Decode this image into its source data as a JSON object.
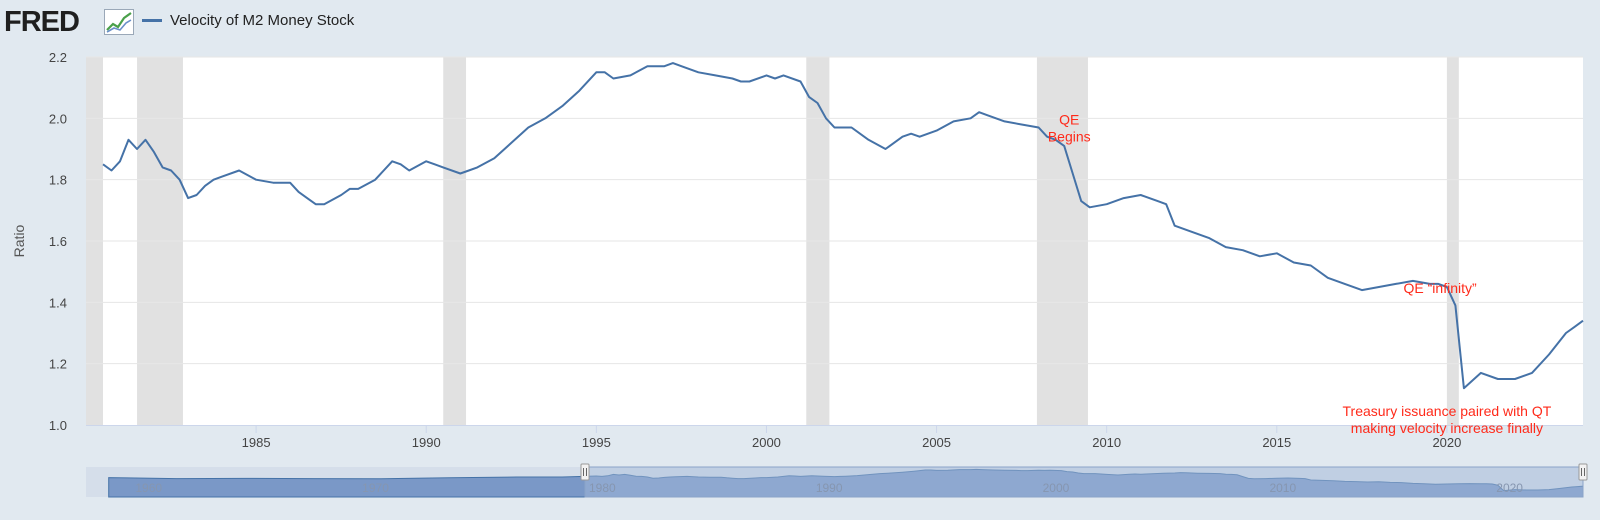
{
  "header": {
    "logo_text": "FRED",
    "logo_icon": "chart-line-icon",
    "legend_label": "Velocity of M2 Money Stock"
  },
  "colors": {
    "line": "#4572a7",
    "annotation": "#ff2a1a",
    "recession": "#e1e1e1",
    "background": "#e1e9f0",
    "navigator_mask": "#a6bcdc"
  },
  "chart_data": {
    "type": "line",
    "title": "",
    "series": [
      {
        "name": "Velocity of M2 Money Stock",
        "x": [
          1980.5,
          1980.75,
          1981.0,
          1981.25,
          1981.5,
          1981.75,
          1982.0,
          1982.25,
          1982.5,
          1982.75,
          1983.0,
          1983.25,
          1983.5,
          1983.75,
          1984.0,
          1984.5,
          1985.0,
          1985.5,
          1986.0,
          1986.25,
          1986.5,
          1986.75,
          1987.0,
          1987.5,
          1987.75,
          1988.0,
          1988.5,
          1989.0,
          1989.25,
          1989.5,
          1990.0,
          1990.25,
          1990.5,
          1991.0,
          1991.25,
          1991.5,
          1992.0,
          1992.5,
          1993.0,
          1993.5,
          1994.0,
          1994.5,
          1995.0,
          1995.25,
          1995.5,
          1996.0,
          1996.5,
          1997.0,
          1997.25,
          1997.5,
          1998.0,
          1998.5,
          1999.0,
          1999.25,
          1999.5,
          2000.0,
          2000.25,
          2000.5,
          2001.0,
          2001.25,
          2001.5,
          2001.75,
          2002.0,
          2002.5,
          2003.0,
          2003.5,
          2004.0,
          2004.25,
          2004.5,
          2005.0,
          2005.5,
          2006.0,
          2006.25,
          2006.5,
          2007.0,
          2007.5,
          2008.0,
          2008.25,
          2008.5,
          2008.75,
          2009.0,
          2009.25,
          2009.5,
          2010.0,
          2010.5,
          2011.0,
          2011.5,
          2011.75,
          2012.0,
          2012.5,
          2013.0,
          2013.5,
          2014.0,
          2014.5,
          2015.0,
          2015.5,
          2016.0,
          2016.5,
          2017.0,
          2017.5,
          2018.0,
          2018.5,
          2019.0,
          2019.5,
          2019.75,
          2020.0,
          2020.25,
          2020.5,
          2021.0,
          2021.5,
          2022.0,
          2022.5,
          2023.0,
          2023.5,
          2023.75,
          2024.0
        ],
        "values": [
          1.85,
          1.83,
          1.86,
          1.93,
          1.9,
          1.93,
          1.89,
          1.84,
          1.83,
          1.8,
          1.74,
          1.75,
          1.78,
          1.8,
          1.81,
          1.83,
          1.8,
          1.79,
          1.79,
          1.76,
          1.74,
          1.72,
          1.72,
          1.75,
          1.77,
          1.77,
          1.8,
          1.86,
          1.85,
          1.83,
          1.86,
          1.85,
          1.84,
          1.82,
          1.83,
          1.84,
          1.87,
          1.92,
          1.97,
          2.0,
          2.04,
          2.09,
          2.15,
          2.15,
          2.13,
          2.14,
          2.17,
          2.17,
          2.18,
          2.17,
          2.15,
          2.14,
          2.13,
          2.12,
          2.12,
          2.14,
          2.13,
          2.14,
          2.12,
          2.07,
          2.05,
          2.0,
          1.97,
          1.97,
          1.93,
          1.9,
          1.94,
          1.95,
          1.94,
          1.96,
          1.99,
          2.0,
          2.02,
          2.01,
          1.99,
          1.98,
          1.97,
          1.94,
          1.93,
          1.91,
          1.82,
          1.73,
          1.71,
          1.72,
          1.74,
          1.75,
          1.73,
          1.72,
          1.65,
          1.63,
          1.61,
          1.58,
          1.57,
          1.55,
          1.56,
          1.53,
          1.52,
          1.48,
          1.46,
          1.44,
          1.45,
          1.46,
          1.47,
          1.46,
          1.46,
          1.45,
          1.39,
          1.12,
          1.17,
          1.15,
          1.15,
          1.17,
          1.23,
          1.3,
          1.32,
          1.34
        ]
      }
    ],
    "recessions": [
      [
        1980.0,
        1980.5
      ],
      [
        1981.5,
        1982.85
      ],
      [
        1990.5,
        1991.17
      ],
      [
        2001.17,
        2001.85
      ],
      [
        2007.95,
        2009.45
      ],
      [
        2020.0,
        2020.35
      ]
    ],
    "xlim": [
      1980.0,
      2024.0
    ],
    "ylim": [
      1.0,
      2.2
    ],
    "xticks": [
      1985,
      1990,
      1995,
      2000,
      2005,
      2010,
      2015,
      2020
    ],
    "xtick_labels": [
      "1985",
      "1990",
      "1995",
      "2000",
      "2005",
      "2010",
      "2015",
      "2020"
    ],
    "yticks": [
      1.0,
      1.2,
      1.4,
      1.6,
      1.8,
      2.0,
      2.2
    ],
    "ytick_labels": [
      "1.0",
      "1.2",
      "1.4",
      "1.6",
      "1.8",
      "2.0",
      "2.2"
    ],
    "xlabel": "",
    "ylabel": "Ratio",
    "grid": "horizontal",
    "legend_placement": "top-left",
    "annotations": [
      {
        "lines": [
          "QE",
          "Begins"
        ],
        "x": 2008.9,
        "y": 1.98,
        "anchor": "middle"
      },
      {
        "lines": [
          "QE “infinity”"
        ],
        "x": 2019.8,
        "y": 1.43,
        "anchor": "middle"
      },
      {
        "lines": [
          "Treasury issuance paired with QT",
          "making velocity increase finally"
        ],
        "x": 2020.0,
        "y": 1.03,
        "anchor": "middle"
      }
    ],
    "navigator": {
      "xlim": [
        1958.0,
        2024.0
      ],
      "xtick_labels": [
        "1960",
        "1970",
        "1980",
        "1990",
        "2000",
        "2010",
        "2020"
      ],
      "xticks": [
        1960,
        1970,
        1980,
        1990,
        2000,
        2010,
        2020
      ],
      "selected_range": [
        1980.0,
        2024.0
      ],
      "history_x": [
        1959,
        1962,
        1965,
        1968,
        1971,
        1974,
        1977,
        1979
      ],
      "history_values": [
        1.77,
        1.72,
        1.73,
        1.72,
        1.71,
        1.76,
        1.8,
        1.8
      ]
    }
  }
}
